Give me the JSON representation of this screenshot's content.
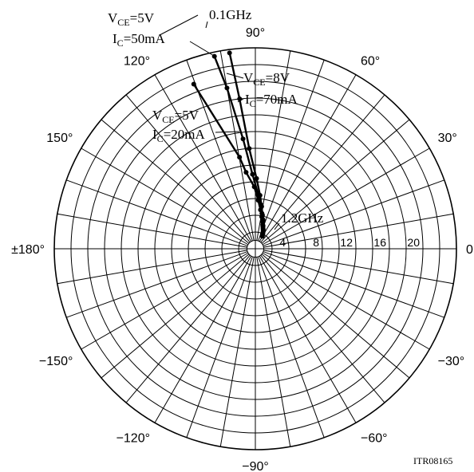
{
  "chart_data": {
    "type": "polar",
    "title": "",
    "radial_axis": {
      "range": [
        0,
        24
      ],
      "ticks": [
        "4",
        "8",
        "12",
        "16",
        "20"
      ]
    },
    "angular_axis": {
      "labels": [
        {
          "angle": 0,
          "text": "0"
        },
        {
          "angle": 30,
          "text": "30°"
        },
        {
          "angle": 60,
          "text": "60°"
        },
        {
          "angle": 90,
          "text": "90°"
        },
        {
          "angle": 120,
          "text": "120°"
        },
        {
          "angle": 150,
          "text": "150°"
        },
        {
          "angle": 180,
          "text": "±180°"
        },
        {
          "angle": -150,
          "text": "−150°"
        },
        {
          "angle": -120,
          "text": "−120°"
        },
        {
          "angle": -90,
          "text": "−90°"
        },
        {
          "angle": -60,
          "text": "−60°"
        },
        {
          "angle": -30,
          "text": "−30°"
        }
      ]
    },
    "freq_start_label": "0.1GHz",
    "freq_end_label": "1.2GHz",
    "series": [
      {
        "name_main": "V",
        "name_sub": "CE",
        "name_tail": "=5V",
        "name2_main": "I",
        "name2_sub": "C",
        "name2_tail": "=50mA",
        "points": [
          {
            "mag": 23.5,
            "ang": 102.0
          },
          {
            "mag": 19.5,
            "ang": 100.0
          },
          {
            "mag": 13.2,
            "ang": 96.4
          },
          {
            "mag": 8.9,
            "ang": 92.2
          },
          {
            "mag": 6.7,
            "ang": 87.6
          },
          {
            "mag": 5.3,
            "ang": 82.9
          },
          {
            "mag": 4.3,
            "ang": 79.5
          },
          {
            "mag": 3.6,
            "ang": 75.3
          },
          {
            "mag": 3.0,
            "ang": 73.0
          },
          {
            "mag": 2.6,
            "ang": 69.4
          },
          {
            "mag": 2.2,
            "ang": 65.4
          },
          {
            "mag": 1.9,
            "ang": 63.6
          }
        ]
      },
      {
        "name_main": "V",
        "name_sub": "CE",
        "name_tail": "=8V",
        "name2_main": "I",
        "name2_sub": "C",
        "name2_tail": "=70mA",
        "points": [
          {
            "mag": 23.6,
            "ang": 97.5
          },
          {
            "mag": 18.0,
            "ang": 96.0
          },
          {
            "mag": 12.0,
            "ang": 93.5
          },
          {
            "mag": 8.4,
            "ang": 89.0
          },
          {
            "mag": 6.4,
            "ang": 85.0
          },
          {
            "mag": 5.1,
            "ang": 81.5
          },
          {
            "mag": 4.1,
            "ang": 78.0
          },
          {
            "mag": 3.5,
            "ang": 74.5
          },
          {
            "mag": 2.9,
            "ang": 71.5
          },
          {
            "mag": 2.5,
            "ang": 68.0
          },
          {
            "mag": 2.1,
            "ang": 64.5
          },
          {
            "mag": 1.8,
            "ang": 62.0
          }
        ]
      },
      {
        "name_main": "V",
        "name_sub": "CE",
        "name_tail": "=5V",
        "name2_main": "I",
        "name2_sub": "C",
        "name2_tail": "=20mA",
        "points": [
          {
            "mag": 21.0,
            "ang": 110.5
          },
          {
            "mag": 11.1,
            "ang": 99.8
          },
          {
            "mag": 9.2,
            "ang": 96.9
          },
          {
            "mag": 7.4,
            "ang": 91.0
          },
          {
            "mag": 5.8,
            "ang": 86.6
          },
          {
            "mag": 4.7,
            "ang": 82.5
          },
          {
            "mag": 3.9,
            "ang": 78.7
          },
          {
            "mag": 3.3,
            "ang": 74.8
          },
          {
            "mag": 2.8,
            "ang": 71.2
          },
          {
            "mag": 2.4,
            "ang": 67.2
          },
          {
            "mag": 2.0,
            "ang": 64.0
          },
          {
            "mag": 1.7,
            "ang": 60.7
          }
        ]
      }
    ],
    "figure_code": "ITR08165"
  }
}
